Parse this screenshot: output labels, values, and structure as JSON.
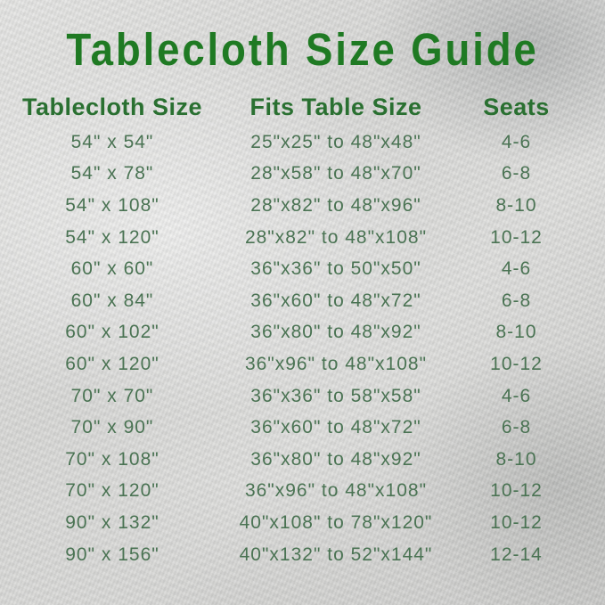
{
  "title": "Tablecloth Size Guide",
  "colors": {
    "title_green": "#1f7a23",
    "header_green": "#2a7031",
    "row_green": "#4a7353",
    "background_silver": "#d6d6d4"
  },
  "chart_data": {
    "type": "table",
    "title": "Tablecloth Size Guide",
    "columns": [
      "Tablecloth Size",
      "Fits Table Size",
      "Seats"
    ],
    "rows": [
      [
        "54\" x 54\"",
        "25\"x25\" to 48\"x48\"",
        "4-6"
      ],
      [
        "54\" x 78\"",
        "28\"x58\" to 48\"x70\"",
        "6-8"
      ],
      [
        "54\" x 108\"",
        "28\"x82\" to 48\"x96\"",
        "8-10"
      ],
      [
        "54\" x 120\"",
        "28\"x82\" to 48\"x108\"",
        "10-12"
      ],
      [
        "60\" x 60\"",
        "36\"x36\" to 50\"x50\"",
        "4-6"
      ],
      [
        "60\" x 84\"",
        "36\"x60\" to 48\"x72\"",
        "6-8"
      ],
      [
        "60\" x 102\"",
        "36\"x80\" to 48\"x92\"",
        "8-10"
      ],
      [
        "60\" x 120\"",
        "36\"x96\" to 48\"x108\"",
        "10-12"
      ],
      [
        "70\" x 70\"",
        "36\"x36\" to 58\"x58\"",
        "4-6"
      ],
      [
        "70\" x 90\"",
        "36\"x60\" to 48\"x72\"",
        "6-8"
      ],
      [
        "70\" x 108\"",
        "36\"x80\" to 48\"x92\"",
        "8-10"
      ],
      [
        "70\" x 120\"",
        "36\"x96\" to 48\"x108\"",
        "10-12"
      ],
      [
        "90\" x 132\"",
        "40\"x108\" to 78\"x120\"",
        "10-12"
      ],
      [
        "90\" x 156\"",
        "40\"x132\" to 52\"x144\"",
        "12-14"
      ]
    ]
  }
}
